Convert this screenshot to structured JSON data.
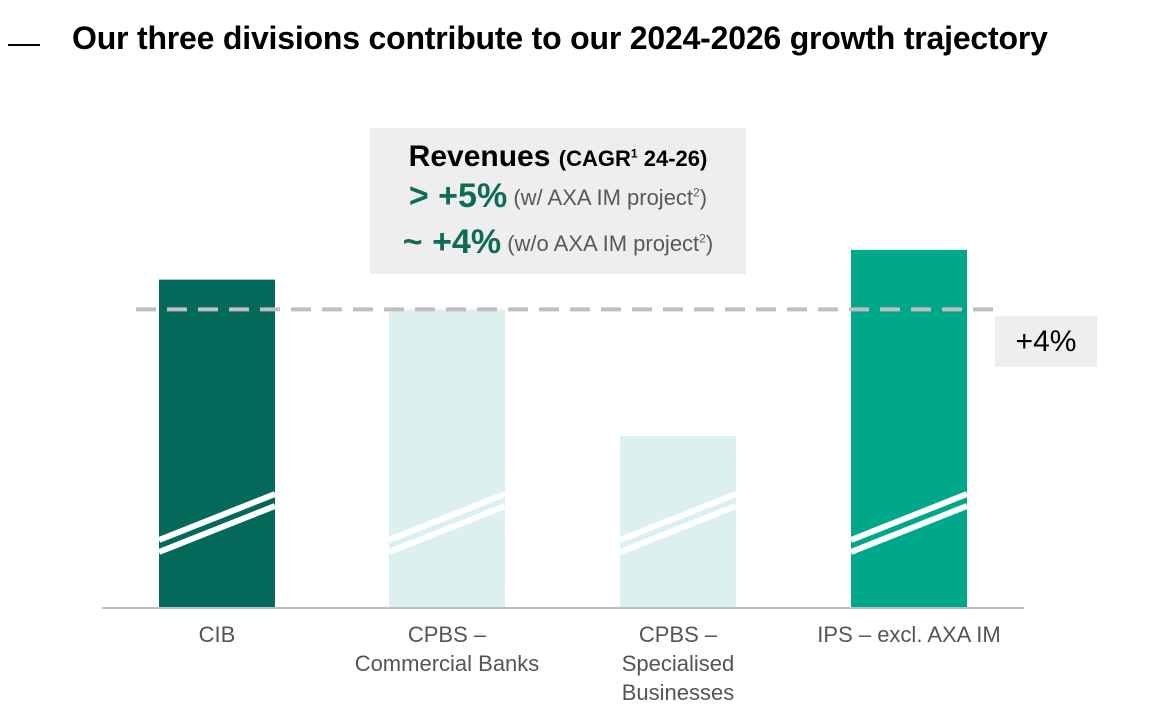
{
  "title": "Our three divisions contribute to our 2024-2026 growth trajectory",
  "revenues_box": {
    "heading": "Revenues",
    "heading_sub_label": "(CAGR",
    "heading_sub_sup": "1",
    "heading_sub_period": " 24-26)",
    "line1_value": "> +5%",
    "line1_note": "(w/ AXA IM project",
    "line1_sup": "2",
    "line2_value": "~ +4%",
    "line2_note": "(w/o AXA IM project",
    "line2_sup": "2",
    "close_paren": ")"
  },
  "reference": {
    "label": "+4%",
    "value": 4
  },
  "chart_data": {
    "type": "bar",
    "title": "Revenues (CAGR 24-26)",
    "categories": [
      "CIB",
      "CPBS – Commercial Banks",
      "CPBS – Specialised Businesses",
      "IPS – excl. AXA IM"
    ],
    "category_lines": [
      [
        "CIB"
      ],
      [
        "CPBS –",
        "Commercial Banks"
      ],
      [
        "CPBS –",
        "Specialised",
        "Businesses"
      ],
      [
        "IPS – excl. AXA IM"
      ]
    ],
    "values": [
      4.4,
      4.0,
      2.3,
      4.8
    ],
    "colors": [
      "#04685b",
      "#ddf0f0",
      "#ddf0f0",
      "#00a88b"
    ],
    "reference_line": 4,
    "ylim": [
      0,
      5
    ],
    "axis_break": true,
    "xlabel": "",
    "ylabel": ""
  }
}
